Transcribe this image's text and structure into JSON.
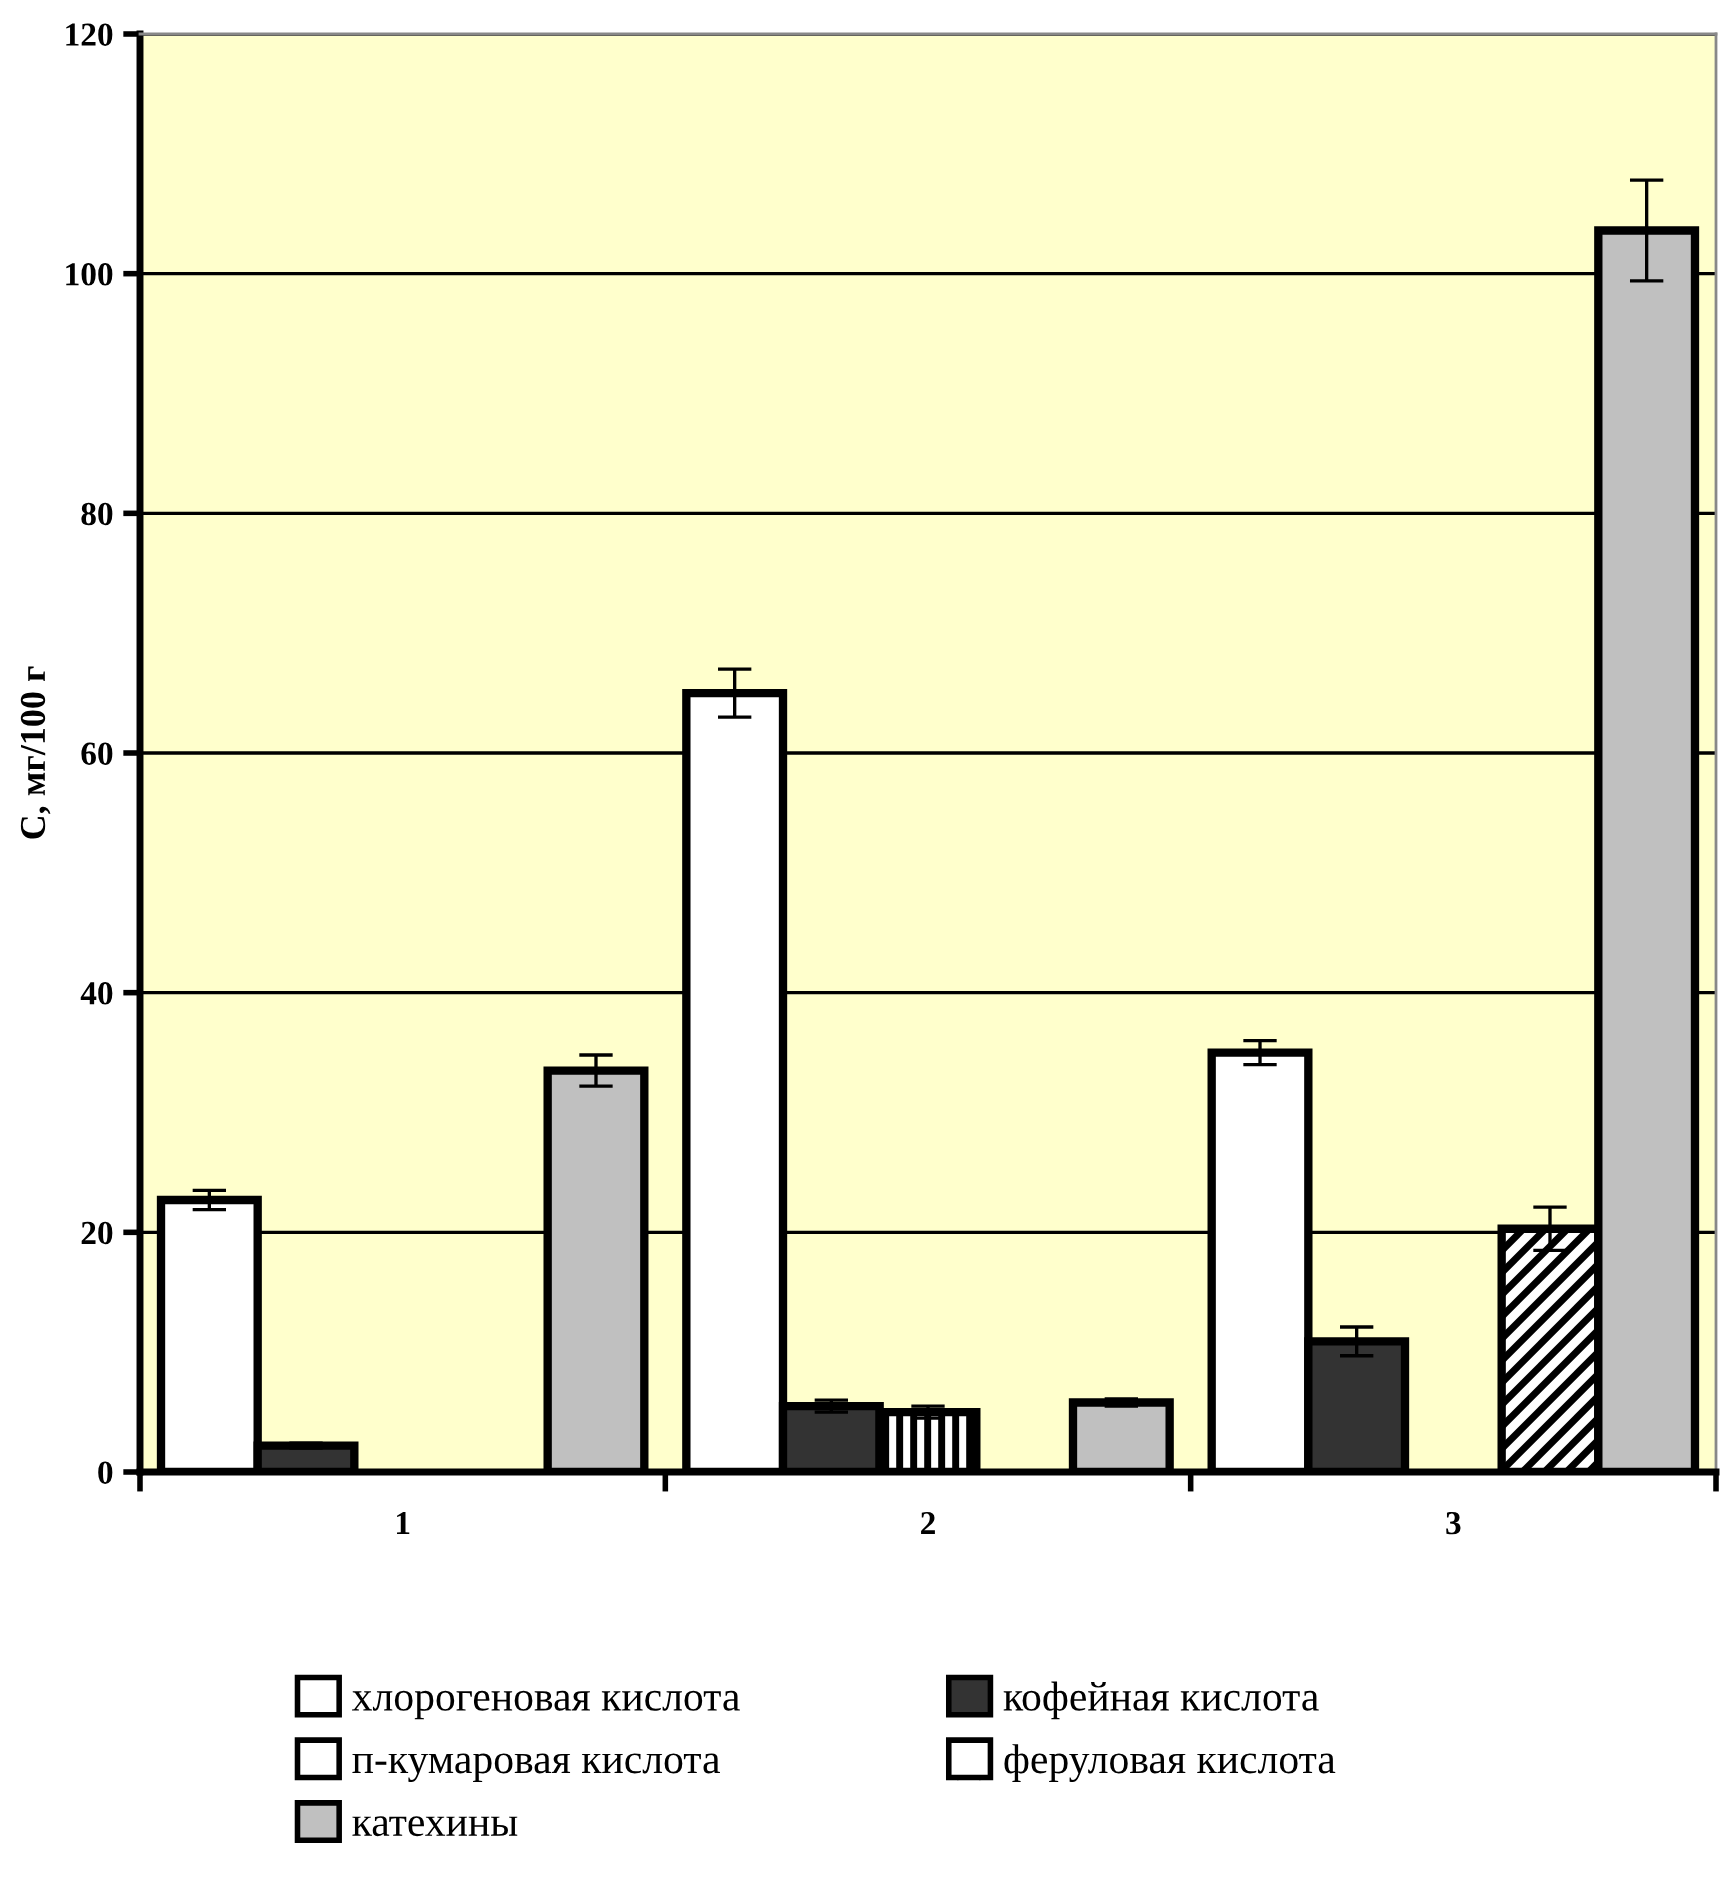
{
  "chart_data": {
    "type": "bar",
    "ylabel": "C, мг/100 г",
    "categories": [
      "1",
      "2",
      "3"
    ],
    "series": [
      {
        "name": "хлорогеновая кислота",
        "color": "#ffffff",
        "values": [
          22.7,
          65.0,
          35.0
        ],
        "errors": [
          0.8,
          2.0,
          1.0
        ]
      },
      {
        "name": "кофейная кислота",
        "color": "#333333",
        "values": [
          2.2,
          5.5,
          10.9
        ],
        "errors": [
          0.2,
          0.5,
          1.2
        ]
      },
      {
        "name": "п-кумаровая кислота",
        "color": "#ffffff",
        "values": [
          null,
          5.0,
          null
        ],
        "errors": [
          null,
          0.5,
          null
        ]
      },
      {
        "name": "феруловая кислота",
        "color": "#ffffff",
        "values": [
          null,
          null,
          20.3
        ],
        "errors": [
          null,
          null,
          1.8
        ]
      },
      {
        "name": "катехины",
        "color": "#c0c0c0",
        "values": [
          33.5,
          5.8,
          103.6
        ],
        "errors": [
          1.3,
          0.3,
          4.2
        ]
      }
    ],
    "ylim": [
      0,
      120
    ],
    "yticks": [
      0,
      20,
      40,
      60,
      80,
      100,
      120
    ],
    "grid": "y",
    "legend": "bottom"
  }
}
